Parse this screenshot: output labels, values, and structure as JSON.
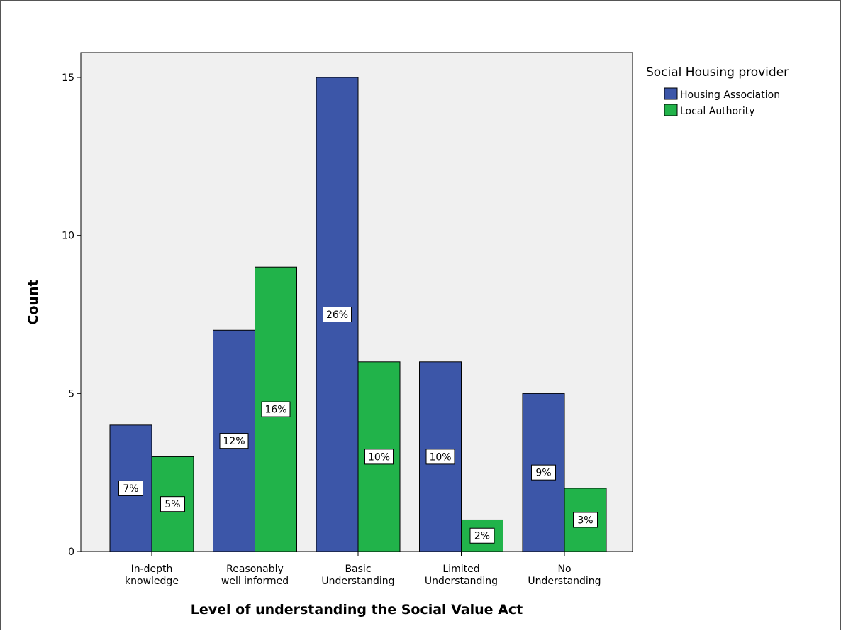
{
  "chart_data": {
    "type": "bar",
    "title": "",
    "xlabel": "Level of understanding the Social Value Act",
    "ylabel": "Count",
    "ylim": [
      0,
      15
    ],
    "yticks": [
      0,
      5,
      10,
      15
    ],
    "categories": [
      [
        "In-depth",
        "knowledge"
      ],
      [
        "Reasonably",
        "well informed"
      ],
      [
        "Basic",
        "Understanding"
      ],
      [
        "Limited",
        "Understanding"
      ],
      [
        "No",
        "Understanding"
      ]
    ],
    "series": [
      {
        "name": "Housing Association",
        "color": "#3c56a8",
        "values": [
          4,
          7,
          15,
          6,
          5
        ],
        "labels": [
          "7%",
          "12%",
          "26%",
          "10%",
          "9%"
        ]
      },
      {
        "name": "Local Authority",
        "color": "#21b34a",
        "values": [
          3,
          9,
          6,
          1,
          2
        ],
        "labels": [
          "5%",
          "16%",
          "10%",
          "2%",
          "3%"
        ]
      }
    ],
    "legend": {
      "title": "Social Housing provider",
      "placement": "right"
    },
    "grid": false,
    "plot_background": "#f0f0f0"
  }
}
